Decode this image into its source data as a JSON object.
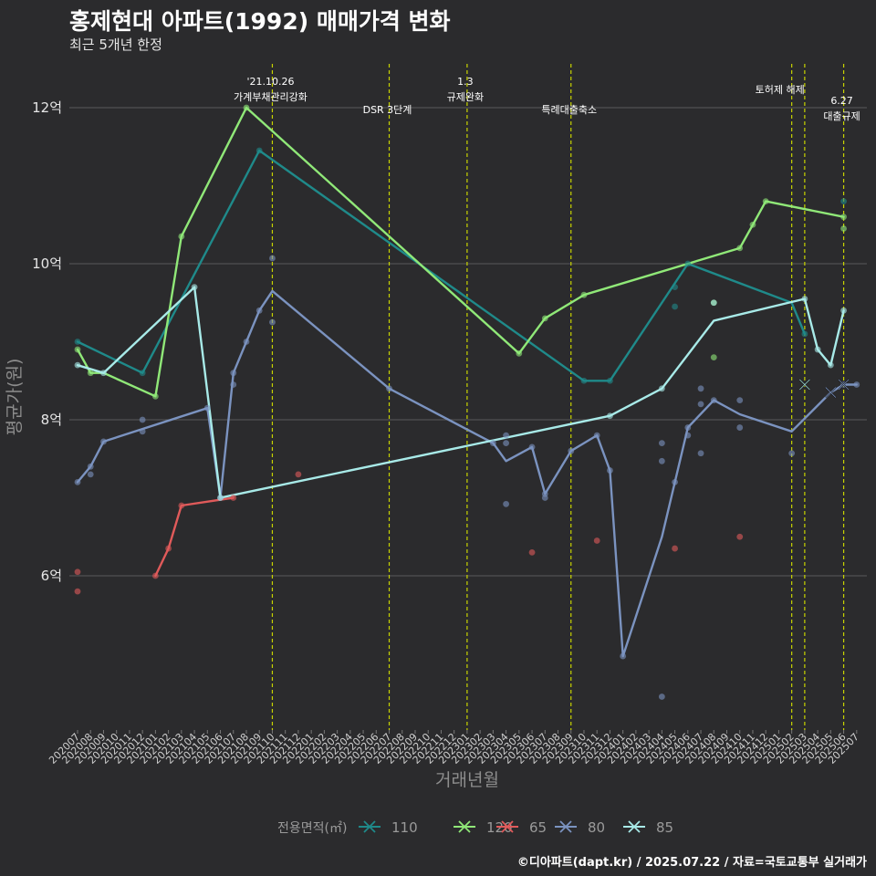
{
  "header": {
    "title": "홍제현대 아파트(1992) 매매가격 변화",
    "subtitle": "최근 5개년 한정",
    "caption": "©디아파트(dapt.kr) / 2025.07.22 / 자료=국토교통부 실거래가"
  },
  "chart_data": {
    "type": "line",
    "title": "홍제현대 아파트(1992) 매매가격 변화",
    "subtitle": "최근 5개년 한정",
    "xlabel": "거래년월",
    "ylabel": "평균가(원)",
    "ylim": [
      4.2,
      12.6
    ],
    "yticks": [
      6,
      8,
      10,
      12
    ],
    "ytick_labels": [
      "6억",
      "8억",
      "10억",
      "12억"
    ],
    "x_start": "2020-07",
    "x_end": "2025-07",
    "grid": true,
    "legend_position": "bottom",
    "legend_title": "전용면적(㎡)",
    "colors": {
      "110": "#1f8a8a",
      "120": "#90e878",
      "65": "#e05a5a",
      "80": "#7b93c0",
      "85": "#a8eae8",
      "event": "#c8d400",
      "background": "#2b2b2d",
      "grid": "#5a5a5a"
    },
    "events": [
      {
        "date": "2021-10",
        "label": "'21.10.26\n가계부채관리강화",
        "label_pos": "upper"
      },
      {
        "date": "2022-07",
        "label": "DSR 3단계",
        "label_pos": "lower"
      },
      {
        "date": "2023-01",
        "label": "1.3\n규제완화",
        "label_pos": "upper"
      },
      {
        "date": "2023-09",
        "label": "특례대출축소",
        "label_pos": "lower"
      },
      {
        "date": "2025-02",
        "label": "토허제 해제",
        "label_pos": "middle"
      },
      {
        "date": "2025-03",
        "label": "",
        "label_pos": "none"
      },
      {
        "date": "2025-06",
        "label": "6.27\n대출규제",
        "label_pos": "lower"
      }
    ],
    "series": [
      {
        "name": "110",
        "line": [
          [
            "2020-07",
            9.0
          ],
          [
            "2020-12",
            8.6
          ],
          [
            "2021-09",
            11.45
          ],
          [
            "2023-10",
            8.5
          ],
          [
            "2023-12",
            8.5
          ],
          [
            "2024-06",
            10.0
          ],
          [
            "2025-02",
            9.5
          ],
          [
            "2025-03",
            9.1
          ]
        ],
        "points": [
          [
            "2020-07",
            9.0
          ],
          [
            "2020-12",
            8.6
          ],
          [
            "2021-09",
            11.45
          ],
          [
            "2023-10",
            8.5
          ],
          [
            "2023-12",
            8.5
          ],
          [
            "2024-05",
            9.7
          ],
          [
            "2024-05",
            9.45
          ],
          [
            "2024-06",
            10.0
          ],
          [
            "2025-03",
            9.1
          ],
          [
            "2025-06",
            10.8
          ]
        ]
      },
      {
        "name": "120",
        "line": [
          [
            "2020-07",
            8.9
          ],
          [
            "2020-08",
            8.6
          ],
          [
            "2020-09",
            8.6
          ],
          [
            "2021-01",
            8.3
          ],
          [
            "2021-03",
            10.35
          ],
          [
            "2021-08",
            12.0
          ],
          [
            "2023-05",
            8.85
          ],
          [
            "2023-07",
            9.3
          ],
          [
            "2023-10",
            9.6
          ],
          [
            "2024-10",
            10.2
          ],
          [
            "2024-11",
            10.5
          ],
          [
            "2024-12",
            10.8
          ],
          [
            "2025-06",
            10.6
          ]
        ],
        "points": [
          [
            "2020-07",
            8.9
          ],
          [
            "2020-08",
            8.6
          ],
          [
            "2021-01",
            8.3
          ],
          [
            "2021-03",
            10.35
          ],
          [
            "2021-08",
            12.0
          ],
          [
            "2023-05",
            8.85
          ],
          [
            "2023-07",
            9.3
          ],
          [
            "2023-10",
            9.6
          ],
          [
            "2024-08",
            9.5
          ],
          [
            "2024-08",
            8.8
          ],
          [
            "2024-10",
            10.2
          ],
          [
            "2024-11",
            10.5
          ],
          [
            "2024-12",
            10.8
          ],
          [
            "2025-06",
            10.45
          ],
          [
            "2025-06",
            10.6
          ]
        ]
      },
      {
        "name": "65",
        "line": [
          [
            "2021-01",
            6.0
          ],
          [
            "2021-02",
            6.35
          ],
          [
            "2021-03",
            6.9
          ],
          [
            "2021-07",
            7.0
          ]
        ],
        "points": [
          [
            "2020-07",
            6.05
          ],
          [
            "2020-07",
            5.8
          ],
          [
            "2021-01",
            6.0
          ],
          [
            "2021-02",
            6.35
          ],
          [
            "2021-03",
            6.9
          ],
          [
            "2021-07",
            7.0
          ],
          [
            "2021-12",
            7.3
          ],
          [
            "2023-06",
            6.3
          ],
          [
            "2023-11",
            6.45
          ],
          [
            "2024-05",
            6.35
          ],
          [
            "2024-10",
            6.5
          ]
        ]
      },
      {
        "name": "80",
        "line": [
          [
            "2020-07",
            7.2
          ],
          [
            "2020-08",
            7.4
          ],
          [
            "2020-09",
            7.72
          ],
          [
            "2021-05",
            8.15
          ],
          [
            "2021-06",
            7.0
          ],
          [
            "2021-07",
            8.6
          ],
          [
            "2021-08",
            9.0
          ],
          [
            "2021-09",
            9.4
          ],
          [
            "2021-10",
            9.65
          ],
          [
            "2022-07",
            8.4
          ],
          [
            "2023-03",
            7.7
          ],
          [
            "2023-04",
            7.47
          ],
          [
            "2023-06",
            7.65
          ],
          [
            "2023-07",
            7.05
          ],
          [
            "2023-09",
            7.6
          ],
          [
            "2023-11",
            7.8
          ],
          [
            "2023-12",
            7.35
          ],
          [
            "2024-01",
            4.97
          ],
          [
            "2024-04",
            6.5
          ],
          [
            "2024-05",
            7.2
          ],
          [
            "2024-06",
            7.9
          ],
          [
            "2024-08",
            8.25
          ],
          [
            "2024-10",
            8.07
          ],
          [
            "2025-02",
            7.85
          ],
          [
            "2025-05",
            8.35
          ],
          [
            "2025-06",
            8.45
          ],
          [
            "2025-07",
            8.45
          ]
        ],
        "points": [
          [
            "2020-07",
            7.2
          ],
          [
            "2020-08",
            7.4
          ],
          [
            "2020-08",
            7.3
          ],
          [
            "2020-09",
            7.72
          ],
          [
            "2020-12",
            8.0
          ],
          [
            "2020-12",
            7.85
          ],
          [
            "2021-05",
            8.15
          ],
          [
            "2021-06",
            7.0
          ],
          [
            "2021-07",
            8.6
          ],
          [
            "2021-07",
            8.45
          ],
          [
            "2021-08",
            9.0
          ],
          [
            "2021-09",
            9.4
          ],
          [
            "2021-10",
            9.25
          ],
          [
            "2021-10",
            10.07
          ],
          [
            "2022-07",
            8.4
          ],
          [
            "2023-03",
            7.7
          ],
          [
            "2023-04",
            7.8
          ],
          [
            "2023-04",
            7.7
          ],
          [
            "2023-04",
            6.92
          ],
          [
            "2023-06",
            7.65
          ],
          [
            "2023-07",
            7.05
          ],
          [
            "2023-07",
            7.0
          ],
          [
            "2023-09",
            7.6
          ],
          [
            "2023-11",
            7.8
          ],
          [
            "2023-12",
            7.35
          ],
          [
            "2024-01",
            4.97
          ],
          [
            "2024-04",
            7.7
          ],
          [
            "2024-04",
            7.47
          ],
          [
            "2024-04",
            4.45
          ],
          [
            "2024-05",
            7.2
          ],
          [
            "2024-06",
            7.9
          ],
          [
            "2024-06",
            7.8
          ],
          [
            "2024-07",
            8.4
          ],
          [
            "2024-07",
            8.2
          ],
          [
            "2024-07",
            7.57
          ],
          [
            "2024-08",
            8.25
          ],
          [
            "2024-10",
            8.25
          ],
          [
            "2024-10",
            7.9
          ],
          [
            "2025-02",
            7.57
          ],
          [
            "2025-06",
            8.45
          ],
          [
            "2025-07",
            8.45
          ]
        ],
        "cancelled": [
          [
            "2025-05",
            8.35
          ],
          [
            "2025-06",
            8.45
          ]
        ]
      },
      {
        "name": "85",
        "line": [
          [
            "2020-07",
            8.7
          ],
          [
            "2020-09",
            8.6
          ],
          [
            "2021-04",
            9.7
          ],
          [
            "2021-06",
            7.0
          ],
          [
            "2023-12",
            8.05
          ],
          [
            "2024-04",
            8.4
          ],
          [
            "2024-08",
            9.27
          ],
          [
            "2025-03",
            9.55
          ],
          [
            "2025-04",
            8.9
          ],
          [
            "2025-05",
            8.7
          ],
          [
            "2025-06",
            9.4
          ]
        ],
        "points": [
          [
            "2020-07",
            8.7
          ],
          [
            "2020-09",
            8.6
          ],
          [
            "2021-04",
            9.7
          ],
          [
            "2021-06",
            7.0
          ],
          [
            "2023-12",
            8.05
          ],
          [
            "2024-04",
            8.4
          ],
          [
            "2024-08",
            9.5
          ],
          [
            "2025-03",
            9.55
          ],
          [
            "2025-04",
            8.9
          ],
          [
            "2025-05",
            8.7
          ],
          [
            "2025-06",
            9.4
          ]
        ],
        "cancelled": [
          [
            "2025-03",
            8.45
          ]
        ]
      }
    ]
  }
}
